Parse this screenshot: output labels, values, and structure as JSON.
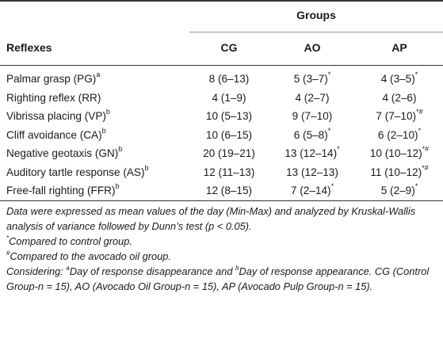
{
  "table": {
    "groups_header": "Groups",
    "label_header": "Reflexes",
    "columns": [
      "CG",
      "AO",
      "AP"
    ],
    "rows": [
      {
        "label": "Palmar grasp (PG)",
        "sup": "a",
        "cg": "8 (6–13)",
        "ao": "5 (3–7)",
        "ao_mark": "*",
        "ap": "4 (3–5)",
        "ap_mark": "*"
      },
      {
        "label": "Righting reflex (RR)",
        "sup": "",
        "cg": "4 (1–9)",
        "ao": "4 (2–7)",
        "ao_mark": "",
        "ap": "4 (2–6)",
        "ap_mark": ""
      },
      {
        "label": "Vibrissa placing (VP)",
        "sup": "b",
        "cg": "10 (5–13)",
        "ao": "9 (7–10)",
        "ao_mark": "",
        "ap": "7 (7–10)",
        "ap_mark": "*#"
      },
      {
        "label": "Cliff avoidance (CA)",
        "sup": "b",
        "cg": "10 (6–15)",
        "ao": "6 (5–8)",
        "ao_mark": "*",
        "ap": "6 (2–10)",
        "ap_mark": "*"
      },
      {
        "label": "Negative geotaxis (GN)",
        "sup": "b",
        "cg": "20 (19–21)",
        "ao": "13 (12–14)",
        "ao_mark": "*",
        "ap": "10 (10–12)",
        "ap_mark": "*#"
      },
      {
        "label": "Auditory tartle response (AS)",
        "sup": "b",
        "cg": "12 (11–13)",
        "ao": "13 (12–13)",
        "ao_mark": "",
        "ap": "11 (10–12)",
        "ap_mark": "*#"
      },
      {
        "label": "Free-fall righting (FFR)",
        "sup": "b",
        "cg": "12 (8–15)",
        "ao": "7 (2–14)",
        "ao_mark": "*",
        "ap": "5 (2–9)",
        "ap_mark": "*"
      }
    ]
  },
  "notes": {
    "line1": "Data were expressed as mean values of the day (Min-Max) and analyzed by Kruskal-Wallis analysis of variance followed by Dunn’s test (p < 0.05).",
    "star_mark": "*",
    "star_text": "Compared to control group.",
    "hash_mark": "#",
    "hash_text": "Compared to the avocado oil group.",
    "considering_prefix": "Considering: ",
    "a_mark": "a",
    "a_text": "Day of response disappearance and ",
    "b_mark": "b",
    "b_text": "Day of response appearance. CG (Control Group-n = 15), AO (Avocado Oil Group-n = 15), AP (Avocado Pulp Group-n = 15)."
  }
}
